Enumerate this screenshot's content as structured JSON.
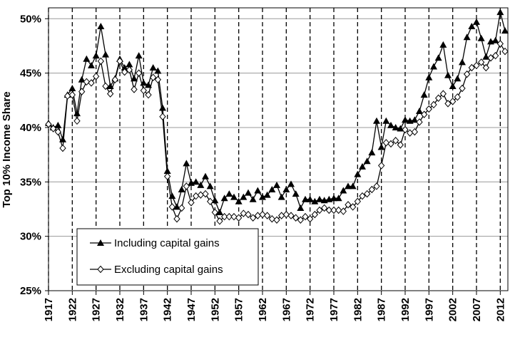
{
  "chart_data": {
    "type": "line",
    "ylabel": "Top 10% Income Share",
    "x": [
      1917,
      1918,
      1919,
      1920,
      1921,
      1922,
      1923,
      1924,
      1925,
      1926,
      1927,
      1928,
      1929,
      1930,
      1931,
      1932,
      1933,
      1934,
      1935,
      1936,
      1937,
      1938,
      1939,
      1940,
      1941,
      1942,
      1943,
      1944,
      1945,
      1946,
      1947,
      1948,
      1949,
      1950,
      1951,
      1952,
      1953,
      1954,
      1955,
      1956,
      1957,
      1958,
      1959,
      1960,
      1961,
      1962,
      1963,
      1964,
      1965,
      1966,
      1967,
      1968,
      1969,
      1970,
      1971,
      1972,
      1973,
      1974,
      1975,
      1976,
      1977,
      1978,
      1979,
      1980,
      1981,
      1982,
      1983,
      1984,
      1985,
      1986,
      1987,
      1988,
      1989,
      1990,
      1991,
      1992,
      1993,
      1994,
      1995,
      1996,
      1997,
      1998,
      1999,
      2000,
      2001,
      2002,
      2003,
      2004,
      2005,
      2006,
      2007,
      2008,
      2009,
      2010,
      2011,
      2012,
      2013
    ],
    "series": [
      {
        "name": "Including capital gains",
        "color": "#000000",
        "marker": "triangle",
        "values": [
          40.4,
          40.0,
          40.2,
          38.9,
          43.0,
          43.6,
          41.3,
          44.4,
          46.3,
          45.7,
          46.6,
          49.3,
          46.7,
          43.8,
          44.5,
          46.3,
          45.5,
          45.8,
          44.5,
          46.6,
          44.1,
          43.9,
          45.5,
          45.2,
          41.8,
          36.0,
          33.7,
          32.7,
          34.3,
          36.7,
          34.9,
          35.0,
          34.7,
          35.5,
          34.6,
          33.3,
          32.2,
          33.5,
          33.9,
          33.6,
          33.2,
          33.6,
          34.0,
          33.4,
          34.2,
          33.6,
          33.8,
          34.3,
          34.7,
          33.6,
          34.3,
          34.8,
          33.9,
          32.6,
          33.4,
          33.4,
          33.2,
          33.4,
          33.3,
          33.4,
          33.5,
          33.5,
          34.2,
          34.6,
          34.6,
          35.7,
          36.4,
          36.9,
          37.7,
          40.6,
          38.2,
          40.6,
          40.2,
          40.0,
          39.9,
          40.7,
          40.6,
          40.7,
          41.5,
          43.0,
          44.6,
          45.6,
          46.4,
          47.6,
          44.8,
          43.8,
          44.5,
          46.0,
          48.3,
          49.3,
          49.7,
          48.2,
          46.5,
          47.9,
          48.0,
          50.6,
          48.9
        ]
      },
      {
        "name": "Excluding capital gains",
        "color": "#000000",
        "marker": "diamond",
        "values": [
          40.3,
          39.9,
          39.6,
          38.1,
          42.9,
          43.0,
          40.6,
          43.3,
          44.2,
          44.1,
          44.7,
          46.1,
          43.8,
          43.1,
          44.4,
          46.1,
          45.1,
          45.3,
          43.5,
          45.0,
          43.4,
          43.0,
          44.6,
          44.4,
          41.0,
          35.5,
          32.7,
          31.6,
          32.6,
          34.6,
          33.1,
          33.7,
          33.8,
          33.9,
          33.2,
          32.2,
          31.4,
          31.8,
          31.8,
          31.8,
          31.7,
          32.1,
          32.0,
          31.7,
          31.9,
          32.0,
          31.9,
          31.6,
          31.5,
          31.9,
          32.0,
          31.9,
          31.7,
          31.5,
          31.8,
          31.6,
          32.0,
          32.4,
          32.6,
          32.4,
          32.4,
          32.4,
          32.3,
          32.9,
          32.7,
          33.2,
          33.7,
          33.9,
          34.3,
          34.6,
          36.5,
          38.6,
          38.5,
          38.8,
          38.4,
          39.8,
          39.5,
          39.6,
          40.5,
          41.2,
          41.7,
          42.1,
          42.7,
          43.1,
          42.2,
          42.4,
          42.8,
          43.6,
          44.9,
          45.5,
          45.7,
          46.0,
          45.5,
          46.4,
          46.6,
          47.7,
          47.0
        ]
      }
    ],
    "xlim": [
      1917,
      2013.6
    ],
    "xticks": [
      1917,
      1922,
      1927,
      1932,
      1937,
      1942,
      1947,
      1952,
      1957,
      1962,
      1967,
      1972,
      1977,
      1982,
      1987,
      1992,
      1997,
      2002,
      2007,
      2012
    ],
    "ylim": [
      25,
      51
    ],
    "yticks": [
      {
        "value": 25,
        "label": "25%"
      },
      {
        "value": 30,
        "label": "30%"
      },
      {
        "value": 35,
        "label": "35%"
      },
      {
        "value": 40,
        "label": "40%"
      },
      {
        "value": 45,
        "label": "45%"
      },
      {
        "value": 50,
        "label": "50%"
      }
    ],
    "grid": true,
    "xgrid": "dashed",
    "legend": "lower left"
  }
}
